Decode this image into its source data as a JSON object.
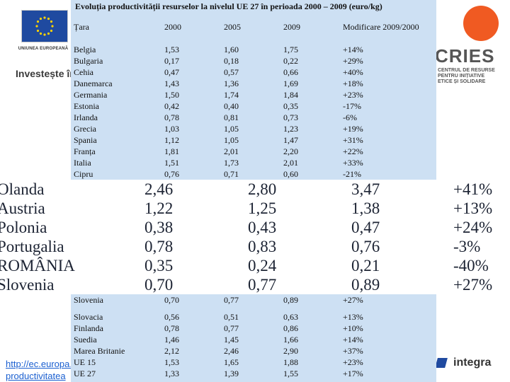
{
  "slide": {
    "eu_label": "UNIUNEA EUROPEANĂ",
    "invest_text": "Investește în oameni",
    "cries_logo": "CRIES",
    "cries_subtitle": "CENTRUL DE RESURSE\nPENTRU INIȚIATIVE\nETICE ȘI SOLIDARE",
    "link_text": "http://ec.europa.eu\nproductivitatea",
    "integra_logo": "integra"
  },
  "table": {
    "title": "Evoluția productivității resurselor la nivelul UE 27 în perioada 2000 – 2009 (euro/kg)",
    "headers": [
      "Țara",
      "2000",
      "2005",
      "2009",
      "Modificare 2009/2000"
    ],
    "rows_top": [
      [
        "Belgia",
        "1,53",
        "1,60",
        "1,75",
        "+14%"
      ],
      [
        "Bulgaria",
        "0,17",
        "0,18",
        "0,22",
        "+29%"
      ],
      [
        "Cehia",
        "0,47",
        "0,57",
        "0,66",
        "+40%"
      ],
      [
        "Danemarca",
        "1,43",
        "1,36",
        "1,69",
        "+18%"
      ],
      [
        "Germania",
        "1,50",
        "1,74",
        "1,84",
        "+23%"
      ],
      [
        "Estonia",
        "0,42",
        "0,40",
        "0,35",
        "-17%"
      ],
      [
        "Irlanda",
        "0,78",
        "0,81",
        "0,73",
        "-6%"
      ],
      [
        "Grecia",
        "1,03",
        "1,05",
        "1,23",
        "+19%"
      ],
      [
        "Spania",
        "1,12",
        "1,05",
        "1,47",
        "+31%"
      ],
      [
        "Franța",
        "1,81",
        "2,01",
        "2,20",
        "+22%"
      ],
      [
        "Italia",
        "1,51",
        "1,73",
        "2,01",
        "+33%"
      ],
      [
        "Cipru",
        "0,76",
        "0,71",
        "0,60",
        "-21%"
      ]
    ],
    "rows_zoom": [
      [
        "Olanda",
        "2,46",
        "2,80",
        "3,47",
        "+41%"
      ],
      [
        "Austria",
        "1,22",
        "1,25",
        "1,38",
        "+13%"
      ],
      [
        "Polonia",
        "0,38",
        "0,43",
        "0,47",
        "+24%"
      ],
      [
        "Portugalia",
        "0,78",
        "0,83",
        "0,76",
        "-3%"
      ],
      [
        "ROMÂNIA",
        "0,35",
        "0,24",
        "0,21",
        "-40%"
      ],
      [
        "Slovenia",
        "0,70",
        "0,77",
        "0,89",
        "+27%"
      ]
    ],
    "rows_bottom": [
      [
        "Slovenia",
        "0,70",
        "0,77",
        "0,89",
        "+27%"
      ],
      [
        "Slovacia",
        "0,56",
        "0,51",
        "0,63",
        "+13%"
      ],
      [
        "Finlanda",
        "0,78",
        "0,77",
        "0,86",
        "+10%"
      ],
      [
        "Suedia",
        "1,46",
        "1,45",
        "1,66",
        "+14%"
      ],
      [
        "Marea Britanie",
        "2,12",
        "2,46",
        "2,90",
        "+37%"
      ],
      [
        "UE 15",
        "1,53",
        "1,65",
        "1,88",
        "+23%"
      ],
      [
        "UE 27",
        "1,33",
        "1,39",
        "1,55",
        "+17%"
      ]
    ]
  }
}
